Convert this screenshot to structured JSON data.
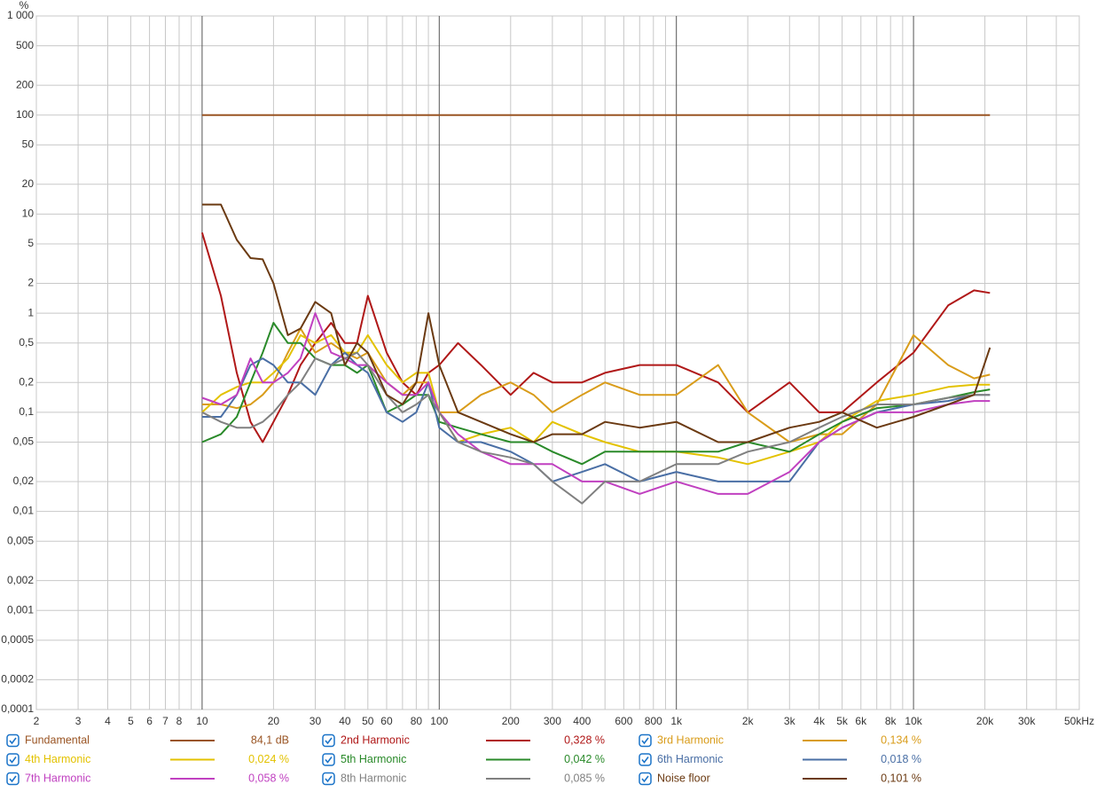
{
  "chart_data": {
    "type": "line",
    "y_unit": "%",
    "xscale": "log",
    "yscale": "log",
    "grid": true,
    "xlim": [
      2,
      50000
    ],
    "ylim": [
      0.0001,
      1000
    ],
    "xticks": [
      2,
      3,
      4,
      5,
      6,
      7,
      8,
      10,
      20,
      30,
      40,
      50,
      60,
      80,
      100,
      200,
      300,
      400,
      600,
      800,
      {
        "value": 1000,
        "label": "1k"
      },
      {
        "value": 2000,
        "label": "2k"
      },
      {
        "value": 3000,
        "label": "3k"
      },
      {
        "value": 4000,
        "label": "4k"
      },
      {
        "value": 5000,
        "label": "5k"
      },
      {
        "value": 6000,
        "label": "6k"
      },
      {
        "value": 8000,
        "label": "8k"
      },
      {
        "value": 10000,
        "label": "10k"
      },
      {
        "value": 20000,
        "label": "20k"
      },
      {
        "value": 30000,
        "label": "30k"
      },
      {
        "value": 50000,
        "label": "50kHz"
      }
    ],
    "xminor": [
      9,
      70,
      90,
      500,
      700,
      900,
      7000,
      9000,
      40000
    ],
    "yticks": [
      {
        "value": 1000,
        "label": "1 000"
      },
      500,
      200,
      100,
      50,
      20,
      10,
      5,
      2,
      1,
      {
        "value": 0.5,
        "label": "0,5"
      },
      {
        "value": 0.2,
        "label": "0,2"
      },
      {
        "value": 0.1,
        "label": "0,1"
      },
      {
        "value": 0.05,
        "label": "0,05"
      },
      {
        "value": 0.02,
        "label": "0,02"
      },
      {
        "value": 0.01,
        "label": "0,01"
      },
      {
        "value": 0.005,
        "label": "0,005"
      },
      {
        "value": 0.002,
        "label": "0,002"
      },
      {
        "value": 0.001,
        "label": "0,001"
      },
      {
        "value": 0.0005,
        "label": "0,0005"
      },
      {
        "value": 0.0002,
        "label": "0,0002"
      },
      {
        "value": 0.0001,
        "label": "0,0001"
      }
    ],
    "x": [
      10,
      12,
      14,
      16,
      18,
      20,
      23,
      26,
      30,
      35,
      40,
      45,
      50,
      60,
      70,
      80,
      90,
      100,
      120,
      150,
      200,
      250,
      300,
      400,
      500,
      700,
      1000,
      1500,
      2000,
      3000,
      4000,
      5000,
      7000,
      10000,
      14000,
      18000,
      21000
    ],
    "series": [
      {
        "name": "Fundamental",
        "color": "#9a5524",
        "legend_value": "84,1 dB",
        "values": [
          100,
          100,
          100,
          100,
          100,
          100,
          100,
          100,
          100,
          100,
          100,
          100,
          100,
          100,
          100,
          100,
          100,
          100,
          100,
          100,
          100,
          100,
          100,
          100,
          100,
          100,
          100,
          100,
          100,
          100,
          100,
          100,
          100,
          100,
          100,
          100,
          100
        ]
      },
      {
        "name": "2nd Harmonic",
        "color": "#b01818",
        "legend_value": "0,328 %",
        "values": [
          6.5,
          1.5,
          0.25,
          0.08,
          0.05,
          0.08,
          0.15,
          0.3,
          0.5,
          0.8,
          0.5,
          0.5,
          1.5,
          0.4,
          0.2,
          0.15,
          0.25,
          0.3,
          0.5,
          0.3,
          0.15,
          0.25,
          0.2,
          0.2,
          0.25,
          0.3,
          0.3,
          0.2,
          0.1,
          0.2,
          0.1,
          0.1,
          0.2,
          0.4,
          1.2,
          1.7,
          1.6
        ]
      },
      {
        "name": "3rd Harmonic",
        "color": "#d99c1a",
        "legend_value": "0,134 %",
        "values": [
          0.12,
          0.12,
          0.11,
          0.12,
          0.15,
          0.2,
          0.4,
          0.7,
          0.4,
          0.5,
          0.4,
          0.35,
          0.4,
          0.2,
          0.15,
          0.2,
          0.2,
          0.1,
          0.1,
          0.15,
          0.2,
          0.15,
          0.1,
          0.15,
          0.2,
          0.15,
          0.15,
          0.3,
          0.1,
          0.05,
          0.06,
          0.06,
          0.12,
          0.6,
          0.3,
          0.22,
          0.24
        ]
      },
      {
        "name": "4th Harmonic",
        "color": "#e3c200",
        "legend_value": "0,024 %",
        "values": [
          0.1,
          0.15,
          0.18,
          0.2,
          0.2,
          0.25,
          0.35,
          0.6,
          0.5,
          0.6,
          0.4,
          0.4,
          0.6,
          0.3,
          0.2,
          0.25,
          0.25,
          0.1,
          0.05,
          0.06,
          0.07,
          0.05,
          0.08,
          0.06,
          0.05,
          0.04,
          0.04,
          0.035,
          0.03,
          0.04,
          0.05,
          0.08,
          0.13,
          0.15,
          0.18,
          0.19,
          0.19
        ]
      },
      {
        "name": "5th Harmonic",
        "color": "#2a8a2a",
        "legend_value": "0,042 %",
        "values": [
          0.05,
          0.06,
          0.09,
          0.2,
          0.4,
          0.8,
          0.5,
          0.5,
          0.35,
          0.3,
          0.3,
          0.25,
          0.3,
          0.1,
          0.12,
          0.15,
          0.15,
          0.08,
          0.07,
          0.06,
          0.05,
          0.05,
          0.04,
          0.03,
          0.04,
          0.04,
          0.04,
          0.04,
          0.05,
          0.04,
          0.06,
          0.08,
          0.11,
          0.12,
          0.14,
          0.16,
          0.17
        ]
      },
      {
        "name": "6th Harmonic",
        "color": "#4a6fa5",
        "legend_value": "0,018 %",
        "values": [
          0.09,
          0.09,
          0.15,
          0.3,
          0.35,
          0.3,
          0.2,
          0.2,
          0.15,
          0.3,
          0.4,
          0.3,
          0.25,
          0.1,
          0.08,
          0.1,
          0.2,
          0.07,
          0.05,
          0.05,
          0.04,
          0.03,
          0.02,
          0.025,
          0.03,
          0.02,
          0.025,
          0.02,
          0.02,
          0.02,
          0.05,
          0.07,
          0.1,
          0.12,
          0.13,
          0.15,
          0.15
        ]
      },
      {
        "name": "7th Harmonic",
        "color": "#c040c0",
        "legend_value": "0,058 %",
        "values": [
          0.14,
          0.12,
          0.15,
          0.35,
          0.2,
          0.2,
          0.25,
          0.35,
          1.0,
          0.4,
          0.35,
          0.3,
          0.3,
          0.2,
          0.15,
          0.15,
          0.2,
          0.1,
          0.06,
          0.04,
          0.03,
          0.03,
          0.03,
          0.02,
          0.02,
          0.015,
          0.02,
          0.015,
          0.015,
          0.025,
          0.05,
          0.07,
          0.1,
          0.1,
          0.12,
          0.13,
          0.13
        ]
      },
      {
        "name": "8th Harmonic",
        "color": "#808080",
        "legend_value": "0,085 %",
        "values": [
          0.1,
          0.08,
          0.07,
          0.07,
          0.08,
          0.1,
          0.15,
          0.2,
          0.35,
          0.3,
          0.35,
          0.4,
          0.3,
          0.15,
          0.1,
          0.12,
          0.15,
          0.1,
          0.05,
          0.04,
          0.035,
          0.03,
          0.02,
          0.012,
          0.02,
          0.02,
          0.03,
          0.03,
          0.04,
          0.05,
          0.07,
          0.09,
          0.12,
          0.12,
          0.14,
          0.15,
          0.15
        ]
      },
      {
        "name": "Noise floor",
        "color": "#6b3a12",
        "legend_value": "0,101 %",
        "values": [
          12.5,
          12.5,
          5.5,
          3.6,
          3.5,
          2,
          0.6,
          0.7,
          1.3,
          1.0,
          0.3,
          0.5,
          0.4,
          0.15,
          0.12,
          0.2,
          1.0,
          0.3,
          0.1,
          0.08,
          0.06,
          0.05,
          0.06,
          0.06,
          0.08,
          0.07,
          0.08,
          0.05,
          0.05,
          0.07,
          0.08,
          0.1,
          0.07,
          0.09,
          0.12,
          0.15,
          0.45
        ]
      }
    ]
  }
}
